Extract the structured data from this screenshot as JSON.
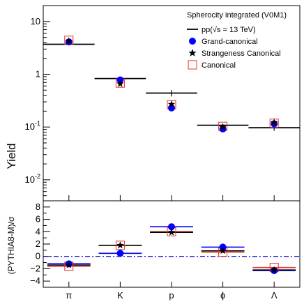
{
  "chart_data": [
    {
      "type": "scatter",
      "panel": "yield",
      "ylabel": "Yield",
      "yscale": "log",
      "ylim": [
        0.004,
        20
      ],
      "y_ticks": [
        {
          "value": 10,
          "label": "10"
        },
        {
          "value": 1,
          "label": "1"
        },
        {
          "value": 0.1,
          "label": "10^-1"
        },
        {
          "value": 0.01,
          "label": "10^-2"
        }
      ],
      "categories": [
        "π",
        "K",
        "p",
        "ϕ",
        "Λ"
      ],
      "legend": {
        "title": "Spherocity integrated (V0M1)",
        "placement": "top-right",
        "entries": {
          "data": "pp(√s = 13 TeV)",
          "grand": "Grand-canonical",
          "strange": "Strangeness Canonical",
          "canonical": "Canonical"
        }
      },
      "series": [
        {
          "name": "pp(√s = 13 TeV)",
          "marker": "hline-errorbar",
          "color": "#000000",
          "values": [
            3.7,
            0.83,
            0.44,
            0.108,
            0.097
          ],
          "errors": [
            0.15,
            0.03,
            0.06,
            0.006,
            0.012
          ]
        },
        {
          "name": "Grand-canonical",
          "marker": "circle",
          "color": "#0000ff",
          "values": [
            4.1,
            0.78,
            0.23,
            0.092,
            0.115
          ]
        },
        {
          "name": "Strangeness Canonical",
          "marker": "star",
          "color": "#000000",
          "values": [
            4.25,
            0.66,
            0.27,
            0.1,
            0.122
          ]
        },
        {
          "name": "Canonical",
          "marker": "open-square",
          "color": "#e8312f",
          "values": [
            4.4,
            0.68,
            0.265,
            0.103,
            0.118
          ]
        }
      ]
    },
    {
      "type": "scatter",
      "panel": "deviation",
      "ylabel": "(PYTHIA8-M)/σ",
      "ylim": [
        -5,
        9
      ],
      "y_ticks": [
        8,
        6,
        4,
        2,
        0,
        -2,
        -4
      ],
      "y_tick_labels": [
        "8",
        "6",
        "4",
        "2",
        "0",
        "−2",
        "−4"
      ],
      "categories": [
        "π",
        "K",
        "p",
        "ϕ",
        "Λ"
      ],
      "reference_line": {
        "value": 0,
        "color": "#0000cc",
        "style": "dash-dot"
      },
      "series": [
        {
          "name": "Grand-canonical",
          "marker": "circle",
          "color": "#0000ff",
          "values": [
            -1.2,
            0.5,
            4.8,
            1.5,
            -2.3
          ]
        },
        {
          "name": "Strangeness Canonical",
          "marker": "star",
          "color": "#000000",
          "values": [
            -1.4,
            1.8,
            3.9,
            0.9,
            -2.2
          ]
        },
        {
          "name": "Canonical",
          "marker": "open-square",
          "color": "#e8312f",
          "values": [
            -1.6,
            1.8,
            4.0,
            0.7,
            -1.8
          ]
        }
      ]
    }
  ]
}
